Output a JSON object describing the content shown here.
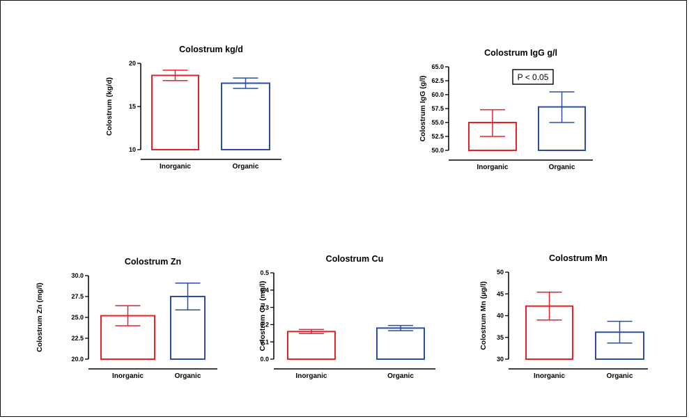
{
  "chart_data": [
    {
      "type": "bar",
      "title": "Colostrum kg/d",
      "ylabel": "Colostrum (kg/d)",
      "categories": [
        "Inorganic",
        "Organic"
      ],
      "values": [
        18.6,
        17.7
      ],
      "error_upper": [
        19.2,
        18.3
      ],
      "error_lower": [
        18.0,
        17.1
      ],
      "ylim": [
        10,
        20
      ],
      "yticks": [
        "10",
        "15",
        "20"
      ],
      "colors": [
        "#e8202a",
        "#2b4ea0"
      ],
      "annotation": ""
    },
    {
      "type": "bar",
      "title": "Colostrum IgG g/l",
      "ylabel": "Colostrum IgG (g/l)",
      "categories": [
        "Inorganic",
        "Organic"
      ],
      "values": [
        55.0,
        57.8
      ],
      "error_upper": [
        57.3,
        60.5
      ],
      "error_lower": [
        52.5,
        55.0
      ],
      "ylim": [
        50,
        65
      ],
      "yticks": [
        "50.0",
        "52.5",
        "55.0",
        "57.5",
        "60.0",
        "62.5",
        "65.0"
      ],
      "colors": [
        "#e8202a",
        "#2b4ea0"
      ],
      "annotation": "P < 0.05"
    },
    {
      "type": "bar",
      "title": "Colostrum Zn",
      "ylabel": "Colostrum Zn (mg/l)",
      "categories": [
        "Inorganic",
        "Organic"
      ],
      "values": [
        25.2,
        27.5
      ],
      "error_upper": [
        26.4,
        29.1
      ],
      "error_lower": [
        24.0,
        25.9
      ],
      "ylim": [
        20,
        30
      ],
      "yticks": [
        "20.0",
        "22.5",
        "25.0",
        "27.5",
        "30.0"
      ],
      "colors": [
        "#e8202a",
        "#2b4ea0"
      ],
      "annotation": ""
    },
    {
      "type": "bar",
      "title": "Colostrum Cu",
      "ylabel": "Colostrum Cu (mg/l)",
      "categories": [
        "Inorganic",
        "Organic"
      ],
      "values": [
        0.16,
        0.18
      ],
      "error_upper": [
        0.172,
        0.195
      ],
      "error_lower": [
        0.148,
        0.165
      ],
      "ylim": [
        0,
        0.5
      ],
      "yticks": [
        "0.0",
        "0.1",
        "0.2",
        "0.3",
        "0.4",
        "0.5"
      ],
      "colors": [
        "#e8202a",
        "#2b4ea0"
      ],
      "annotation": ""
    },
    {
      "type": "bar",
      "title": "Colostrum Mn",
      "ylabel": "Colostrum Mn (µg/l)",
      "categories": [
        "Inorganic",
        "Organic"
      ],
      "values": [
        42.2,
        36.2
      ],
      "error_upper": [
        45.4,
        38.7
      ],
      "error_lower": [
        39.0,
        33.7
      ],
      "ylim": [
        30,
        50
      ],
      "yticks": [
        "30",
        "35",
        "40",
        "45",
        "50"
      ],
      "colors": [
        "#e8202a",
        "#2b4ea0"
      ],
      "annotation": ""
    }
  ]
}
